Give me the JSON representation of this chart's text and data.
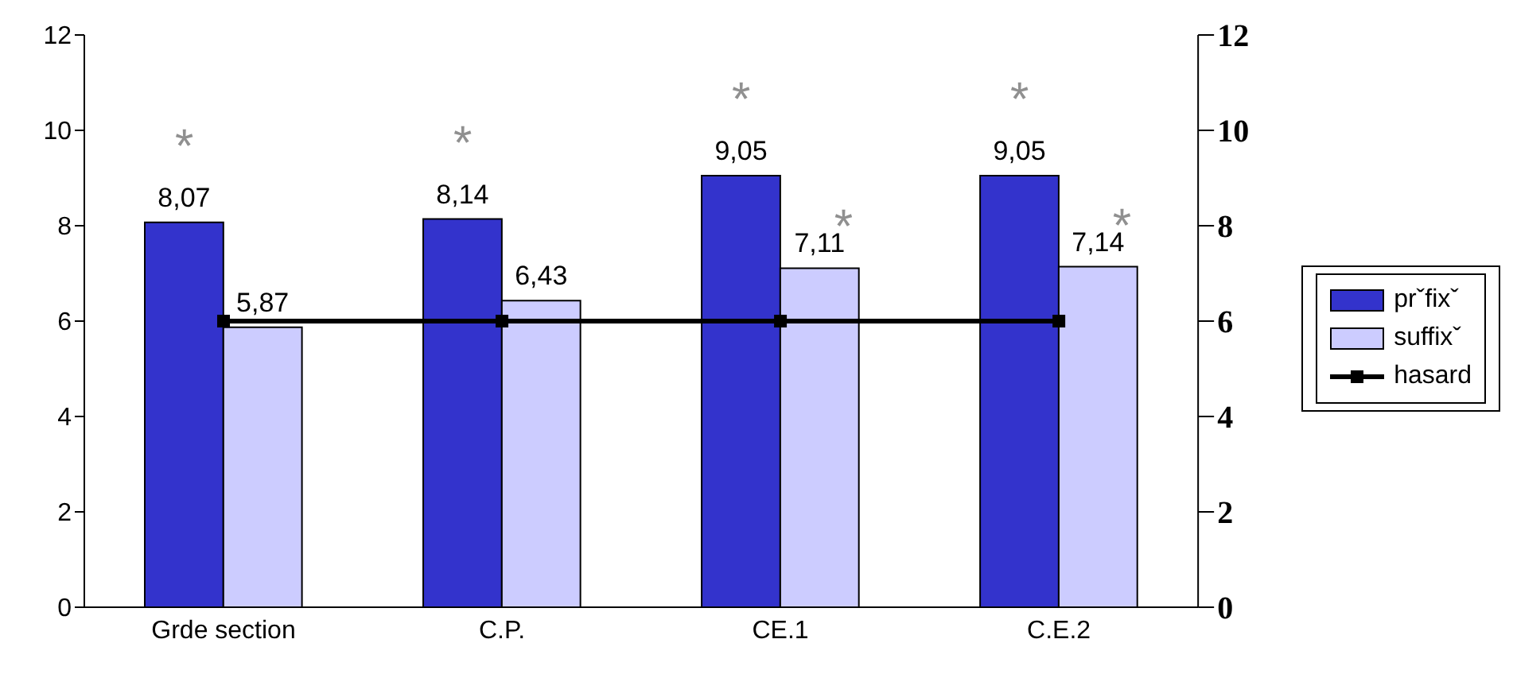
{
  "chart_data": {
    "type": "bar",
    "categories": [
      "Grde section",
      "C.P.",
      "CE.1",
      "C.E.2"
    ],
    "series": [
      {
        "name": "prˇfixˇ",
        "color": "#3333cc",
        "values": [
          8.07,
          8.14,
          9.05,
          9.05
        ],
        "value_labels": [
          "8,07",
          "8,14",
          "9,05",
          "9,05"
        ]
      },
      {
        "name": "suffixˇ",
        "color": "#ccccff",
        "values": [
          5.87,
          6.43,
          7.11,
          7.14
        ],
        "value_labels": [
          "5,87",
          "6,43",
          "7,11",
          "7,14"
        ]
      },
      {
        "name": "hasard",
        "type": "line",
        "color": "#000000",
        "values": [
          6,
          6,
          6,
          6
        ],
        "marker": "square"
      }
    ],
    "ylim": [
      0,
      12
    ],
    "yticks": [
      0,
      2,
      4,
      6,
      8,
      10,
      12
    ],
    "y2lim": [
      0,
      12
    ],
    "y2ticks": [
      0,
      2,
      4,
      6,
      8,
      10,
      12
    ],
    "grid": false,
    "legend": "right",
    "annotations": [
      {
        "text": "*",
        "x": "Grde section",
        "y": 8.07
      },
      {
        "text": "*",
        "x": "C.P.",
        "y": 8.14
      },
      {
        "text": "*",
        "x": "CE.1",
        "y": 9.05
      },
      {
        "text": "*",
        "x": "CE.1",
        "y": 7.11
      },
      {
        "text": "*",
        "x": "C.E.2",
        "y": 9.05
      },
      {
        "text": "*",
        "x": "C.E.2",
        "y": 7.14
      }
    ]
  }
}
